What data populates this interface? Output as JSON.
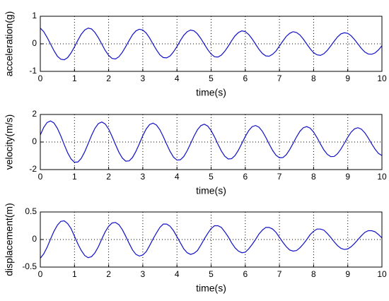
{
  "chart_data": [
    {
      "type": "line",
      "y_label": "acceleration(g)",
      "x_label": "time(s)",
      "grid": true,
      "xlim": [
        0,
        10
      ],
      "xticks": [
        0,
        1,
        2,
        3,
        4,
        5,
        6,
        7,
        8,
        9,
        10
      ],
      "ylim": [
        -1,
        1
      ],
      "yticks": [
        -1,
        0,
        1
      ],
      "x": [
        0,
        0.1,
        0.2,
        0.3,
        0.4,
        0.5,
        0.6,
        0.7,
        0.8,
        0.9,
        1,
        1.1,
        1.2,
        1.3,
        1.4,
        1.5,
        1.6,
        1.7,
        1.8,
        1.9,
        2,
        2.1,
        2.2,
        2.3,
        2.4,
        2.5,
        2.6,
        2.7,
        2.8,
        2.9,
        3,
        3.1,
        3.2,
        3.3,
        3.4,
        3.5,
        3.6,
        3.7,
        3.8,
        3.9,
        4,
        4.1,
        4.2,
        4.3,
        4.4,
        4.5,
        4.6,
        4.7,
        4.8,
        4.9,
        5,
        5.1,
        5.2,
        5.3,
        5.4,
        5.5,
        5.6,
        5.7,
        5.8,
        5.9,
        6,
        6.1,
        6.2,
        6.3,
        6.4,
        6.5,
        6.6,
        6.7,
        6.8,
        6.9,
        7,
        7.1,
        7.2,
        7.3,
        7.4,
        7.5,
        7.6,
        7.7,
        7.8,
        7.9,
        8,
        8.1,
        8.2,
        8.3,
        8.4,
        8.5,
        8.6,
        8.7,
        8.8,
        8.9,
        9,
        9.1,
        9.2,
        9.3,
        9.4,
        9.5,
        9.6,
        9.7,
        9.8,
        9.9,
        10
      ],
      "series": [
        {
          "color": "#1010c8",
          "values": [
            0.57,
            0.44,
            0.23,
            -0.01,
            -0.25,
            -0.45,
            -0.56,
            -0.58,
            -0.5,
            -0.33,
            -0.11,
            0.13,
            0.35,
            0.5,
            0.57,
            0.54,
            0.41,
            0.22,
            -0.01,
            -0.24,
            -0.42,
            -0.53,
            -0.55,
            -0.47,
            -0.31,
            -0.1,
            0.12,
            0.33,
            0.47,
            0.53,
            0.5,
            0.39,
            0.21,
            -0.01,
            -0.22,
            -0.4,
            -0.5,
            -0.51,
            -0.44,
            -0.29,
            -0.1,
            0.12,
            0.31,
            0.44,
            0.5,
            0.47,
            0.36,
            0.19,
            -0.01,
            -0.21,
            -0.37,
            -0.47,
            -0.48,
            -0.41,
            -0.27,
            -0.09,
            0.11,
            0.29,
            0.41,
            0.47,
            0.44,
            0.34,
            0.18,
            -0.01,
            -0.2,
            -0.35,
            -0.44,
            -0.45,
            -0.38,
            -0.26,
            -0.08,
            0.1,
            0.27,
            0.38,
            0.44,
            0.41,
            0.32,
            0.17,
            -0.01,
            -0.18,
            -0.32,
            -0.4,
            -0.42,
            -0.36,
            -0.24,
            -0.08,
            0.09,
            0.25,
            0.36,
            0.4,
            0.38,
            0.29,
            0.15,
            -0.01,
            -0.17,
            -0.3,
            -0.37,
            -0.38,
            -0.33,
            -0.22,
            -0.07
          ]
        }
      ]
    },
    {
      "type": "line",
      "y_label": "velocity(m/s)",
      "x_label": "time(s)",
      "grid": true,
      "xlim": [
        0,
        10
      ],
      "xticks": [
        0,
        1,
        2,
        3,
        4,
        5,
        6,
        7,
        8,
        9,
        10
      ],
      "ylim": [
        -2,
        2
      ],
      "yticks": [
        -2,
        0,
        2
      ],
      "x": [
        0,
        0.1,
        0.2,
        0.3,
        0.4,
        0.5,
        0.6,
        0.7,
        0.8,
        0.9,
        1,
        1.1,
        1.2,
        1.3,
        1.4,
        1.5,
        1.6,
        1.7,
        1.8,
        1.9,
        2,
        2.1,
        2.2,
        2.3,
        2.4,
        2.5,
        2.6,
        2.7,
        2.8,
        2.9,
        3,
        3.1,
        3.2,
        3.3,
        3.4,
        3.5,
        3.6,
        3.7,
        3.8,
        3.9,
        4,
        4.1,
        4.2,
        4.3,
        4.4,
        4.5,
        4.6,
        4.7,
        4.8,
        4.9,
        5,
        5.1,
        5.2,
        5.3,
        5.4,
        5.5,
        5.6,
        5.7,
        5.8,
        5.9,
        6,
        6.1,
        6.2,
        6.3,
        6.4,
        6.5,
        6.6,
        6.7,
        6.8,
        6.9,
        7,
        7.1,
        7.2,
        7.3,
        7.4,
        7.5,
        7.6,
        7.7,
        7.8,
        7.9,
        8,
        8.1,
        8.2,
        8.3,
        8.4,
        8.5,
        8.6,
        8.7,
        8.8,
        8.9,
        9,
        9.1,
        9.2,
        9.3,
        9.4,
        9.5,
        9.6,
        9.7,
        9.8,
        9.9,
        10
      ],
      "series": [
        {
          "color": "#1010c8",
          "values": [
            0.51,
            1.06,
            1.42,
            1.53,
            1.38,
            0.99,
            0.44,
            -0.19,
            -0.78,
            -1.23,
            -1.47,
            -1.45,
            -1.18,
            -0.71,
            -0.12,
            0.48,
            1.0,
            1.34,
            1.45,
            1.31,
            0.94,
            0.41,
            -0.18,
            -0.74,
            -1.16,
            -1.39,
            -1.37,
            -1.12,
            -0.67,
            -0.12,
            0.46,
            0.95,
            1.27,
            1.37,
            1.23,
            0.89,
            0.39,
            -0.17,
            -0.69,
            -1.1,
            -1.31,
            -1.29,
            -1.05,
            -0.63,
            -0.11,
            0.43,
            0.89,
            1.19,
            1.29,
            1.16,
            0.83,
            0.37,
            -0.16,
            -0.65,
            -1.03,
            -1.23,
            -1.21,
            -0.98,
            -0.59,
            -0.1,
            0.4,
            0.83,
            1.11,
            1.2,
            1.08,
            0.78,
            0.34,
            -0.15,
            -0.61,
            -0.96,
            -1.14,
            -1.13,
            -0.92,
            -0.55,
            -0.1,
            0.37,
            0.78,
            1.04,
            1.12,
            1.01,
            0.72,
            0.32,
            -0.14,
            -0.57,
            -0.89,
            -1.06,
            -1.05,
            -0.85,
            -0.51,
            -0.09,
            0.35,
            0.72,
            0.96,
            1.04,
            0.93,
            0.67,
            0.29,
            -0.13,
            -0.52,
            -0.83,
            -0.98
          ]
        }
      ]
    },
    {
      "type": "line",
      "y_label": "displacement(m)",
      "x_label": "time(s)",
      "grid": true,
      "xlim": [
        0,
        10
      ],
      "xticks": [
        0,
        1,
        2,
        3,
        4,
        5,
        6,
        7,
        8,
        9,
        10
      ],
      "ylim": [
        -0.5,
        0.5
      ],
      "yticks": [
        -0.5,
        0,
        0.5
      ],
      "x": [
        0,
        0.1,
        0.2,
        0.3,
        0.4,
        0.5,
        0.6,
        0.7,
        0.8,
        0.9,
        1,
        1.1,
        1.2,
        1.3,
        1.4,
        1.5,
        1.6,
        1.7,
        1.8,
        1.9,
        2,
        2.1,
        2.2,
        2.3,
        2.4,
        2.5,
        2.6,
        2.7,
        2.8,
        2.9,
        3,
        3.1,
        3.2,
        3.3,
        3.4,
        3.5,
        3.6,
        3.7,
        3.8,
        3.9,
        4,
        4.1,
        4.2,
        4.3,
        4.4,
        4.5,
        4.6,
        4.7,
        4.8,
        4.9,
        5,
        5.1,
        5.2,
        5.3,
        5.4,
        5.5,
        5.6,
        5.7,
        5.8,
        5.9,
        6,
        6.1,
        6.2,
        6.3,
        6.4,
        6.5,
        6.6,
        6.7,
        6.8,
        6.9,
        7,
        7.1,
        7.2,
        7.3,
        7.4,
        7.5,
        7.6,
        7.7,
        7.8,
        7.9,
        8,
        8.1,
        8.2,
        8.3,
        8.4,
        8.5,
        8.6,
        8.7,
        8.8,
        8.9,
        9,
        9.1,
        9.2,
        9.3,
        9.4,
        9.5,
        9.6,
        9.7,
        9.8,
        9.9,
        10
      ],
      "series": [
        {
          "color": "#1010c8",
          "values": [
            -0.34,
            -0.26,
            -0.14,
            0.01,
            0.15,
            0.26,
            0.33,
            0.34,
            0.29,
            0.2,
            0.06,
            -0.08,
            -0.2,
            -0.29,
            -0.33,
            -0.31,
            -0.24,
            -0.13,
            0.01,
            0.14,
            0.24,
            0.3,
            0.31,
            0.27,
            0.18,
            0.06,
            -0.07,
            -0.19,
            -0.27,
            -0.3,
            -0.28,
            -0.22,
            -0.11,
            0.01,
            0.12,
            0.22,
            0.28,
            0.28,
            0.24,
            0.16,
            0.05,
            -0.06,
            -0.17,
            -0.24,
            -0.27,
            -0.25,
            -0.2,
            -0.1,
            0.01,
            0.11,
            0.2,
            0.25,
            0.25,
            0.22,
            0.14,
            0.05,
            -0.06,
            -0.15,
            -0.21,
            -0.24,
            -0.23,
            -0.17,
            -0.09,
            0.0,
            0.1,
            0.17,
            0.22,
            0.22,
            0.19,
            0.13,
            0.04,
            -0.05,
            -0.13,
            -0.19,
            -0.21,
            -0.2,
            -0.15,
            -0.08,
            0.0,
            0.09,
            0.15,
            0.19,
            0.19,
            0.17,
            0.11,
            0.04,
            -0.04,
            -0.11,
            -0.16,
            -0.18,
            -0.17,
            -0.13,
            -0.07,
            0.0,
            0.07,
            0.13,
            0.16,
            0.16,
            0.14,
            0.09,
            0.03
          ]
        }
      ]
    }
  ]
}
